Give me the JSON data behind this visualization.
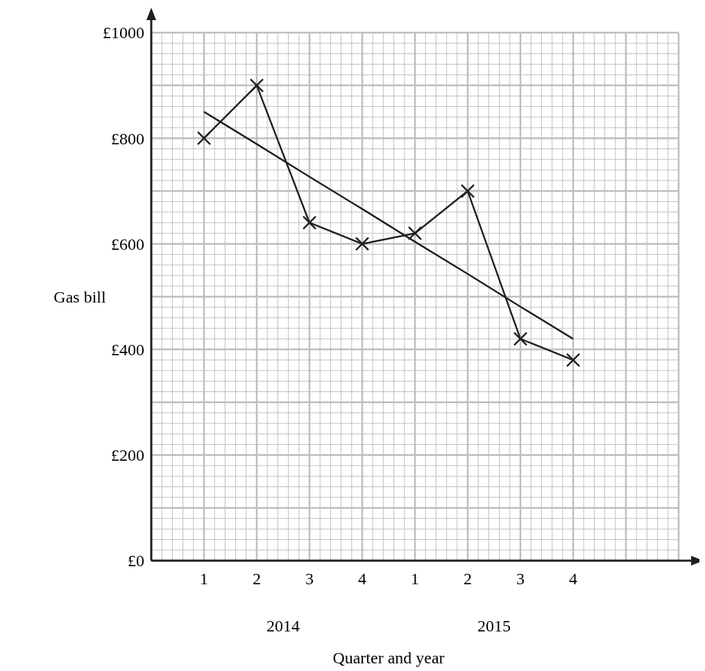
{
  "chart_data": {
    "type": "line",
    "xlabel": "Quarter and year",
    "ylabel": "Gas bill",
    "categories": [
      "1",
      "2",
      "3",
      "4",
      "1",
      "2",
      "3",
      "4",
      null,
      null
    ],
    "ylim": [
      0,
      1000
    ],
    "yticks": [
      {
        "value": 0,
        "label": "£0"
      },
      {
        "value": 100,
        "label": null
      },
      {
        "value": 200,
        "label": "£200"
      },
      {
        "value": 300,
        "label": null
      },
      {
        "value": 400,
        "label": "£400"
      },
      {
        "value": 500,
        "label": null
      },
      {
        "value": 600,
        "label": "£600"
      },
      {
        "value": 700,
        "label": null
      },
      {
        "value": 800,
        "label": "£800"
      },
      {
        "value": 900,
        "label": null
      },
      {
        "value": 1000,
        "label": "£1000"
      }
    ],
    "grid": true,
    "marker": "cross",
    "line_style": "solid",
    "annotations": [
      "2014",
      "2015"
    ],
    "series": [
      {
        "color": "#231f20",
        "values": [
          800,
          900,
          640,
          600,
          620,
          700,
          420,
          380,
          null,
          null
        ]
      },
      {
        "color": "#231f20",
        "values": [
          850,
          789,
          727,
          666,
          604,
          543,
          481,
          420,
          null,
          null
        ],
        "marker": "none"
      }
    ]
  }
}
